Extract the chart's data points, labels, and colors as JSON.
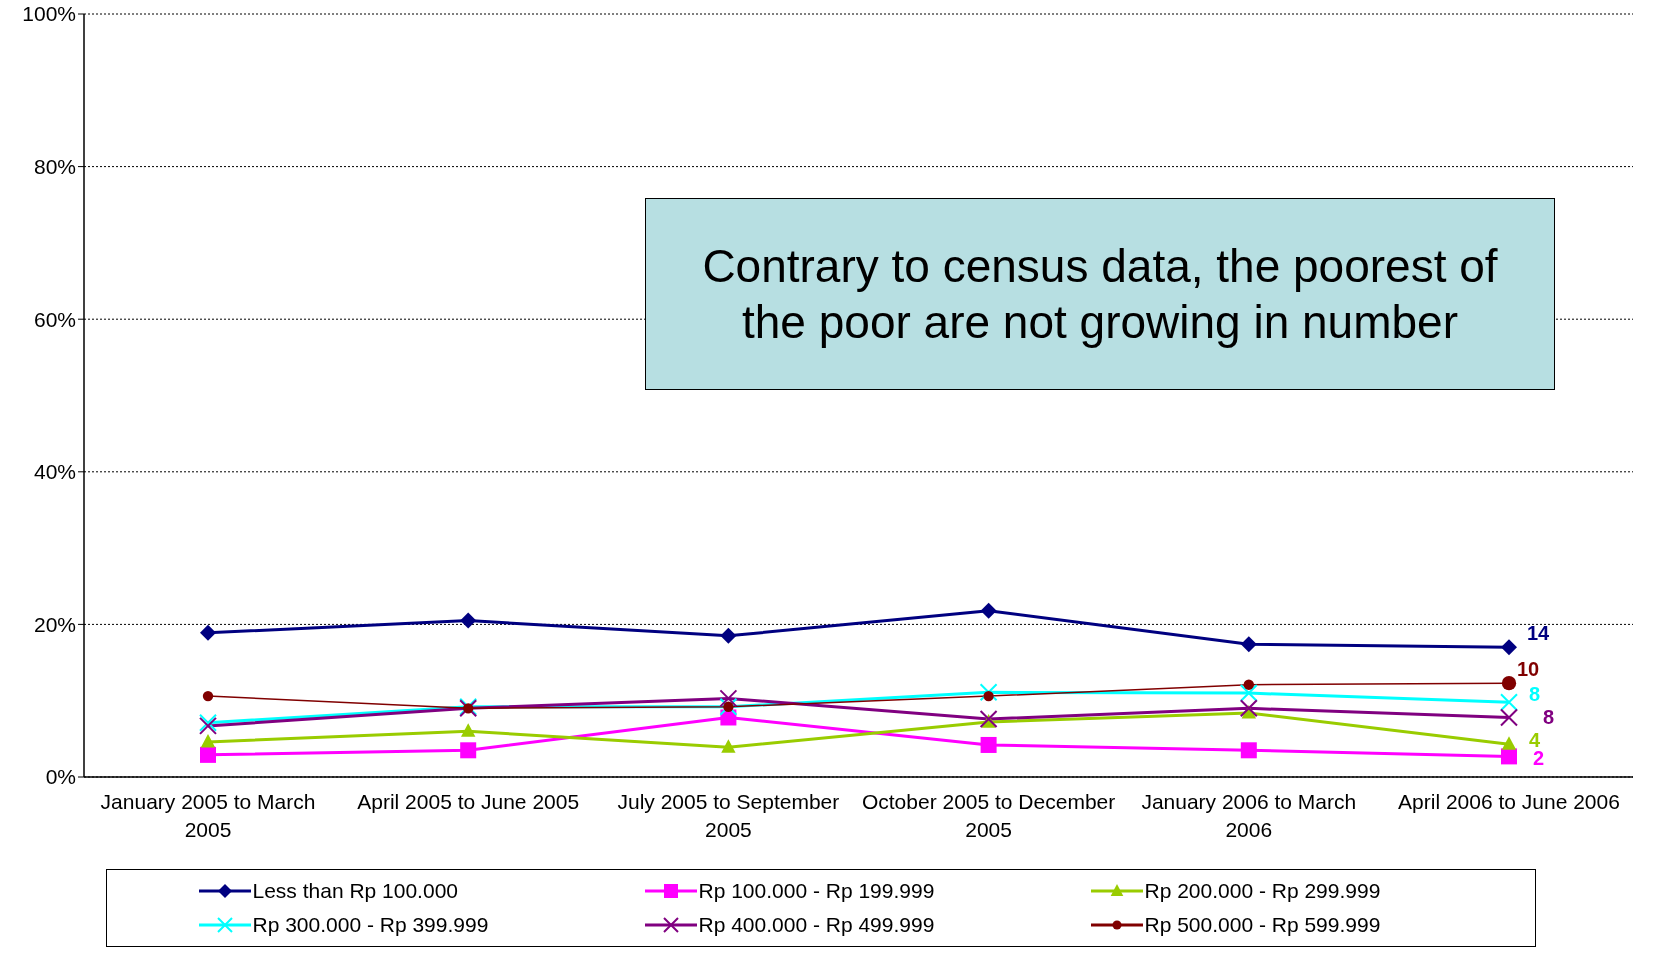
{
  "chart_data": {
    "type": "line",
    "categories": [
      "January 2005 to March 2005",
      "April 2005 to June 2005",
      "July 2005 to September 2005",
      "October 2005 to December 2005",
      "January 2006 to March 2006",
      "April 2006 to June 2006"
    ],
    "ylim": [
      0,
      100
    ],
    "yticks": [
      {
        "value": 0,
        "label": "0%"
      },
      {
        "value": 20,
        "label": "20%"
      },
      {
        "value": 40,
        "label": "40%"
      },
      {
        "value": 60,
        "label": "60%"
      },
      {
        "value": 80,
        "label": "80%"
      },
      {
        "value": 100,
        "label": "100%"
      }
    ],
    "grid": "y",
    "legend": "bottom",
    "line_style": "solid",
    "annotations": [
      "Contrary to census data, the poorest of the poor are not growing in number",
      {
        "text": "14",
        "x": "April 2006 to June 2006",
        "y": 17.0
      },
      {
        "text": "10",
        "x": "April 2006 to June 2006",
        "y": 12.3
      },
      {
        "text": "8",
        "x": "April 2006 to June 2006",
        "y": 9.8
      },
      {
        "text": "8",
        "x": "April 2006 to June 2006",
        "y": 7.8
      },
      {
        "text": "4",
        "x": "April 2006 to June 2006",
        "y": 4.3
      },
      {
        "text": "2",
        "x": "April 2006 to June 2006",
        "y": 2.7
      }
    ],
    "series": [
      {
        "name": "Less than Rp 100.000",
        "color": "#000080",
        "marker": "diamond",
        "values": [
          18.9,
          20.5,
          18.5,
          21.8,
          17.4,
          17.0
        ]
      },
      {
        "name": "Rp 100.000 - Rp 199.999",
        "color": "#ff00ff",
        "marker": "square",
        "values": [
          2.9,
          3.5,
          7.8,
          4.2,
          3.5,
          2.7
        ]
      },
      {
        "name": "Rp 200.000 - Rp 299.999",
        "color": "#99cc00",
        "marker": "triangle",
        "values": [
          4.6,
          6.0,
          3.9,
          7.2,
          8.4,
          4.3
        ]
      },
      {
        "name": "Rp 300.000 - Rp 399.999",
        "color": "#00ffff",
        "marker": "cross",
        "values": [
          7.1,
          9.2,
          9.2,
          11.1,
          11.0,
          9.8
        ]
      },
      {
        "name": "Rp 400.000 - Rp 499.999",
        "color": "#800080",
        "marker": "cross",
        "values": [
          6.7,
          9.0,
          10.3,
          7.6,
          9.0,
          7.8
        ]
      },
      {
        "name": "Rp 500.000 - Rp 599.999",
        "color": "#800000",
        "marker": "circle",
        "values": [
          10.6,
          9.0,
          9.2,
          10.6,
          12.1,
          12.3
        ]
      }
    ]
  }
}
